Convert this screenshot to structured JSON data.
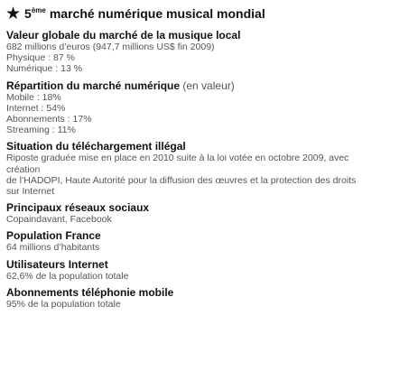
{
  "title": {
    "star": "★",
    "rank_num": "5",
    "rank_suffix": "ème",
    "text": "marché numérique musical mondial"
  },
  "sections": [
    {
      "heading": "Valeur globale du marché de la musique local",
      "lines": [
        "682 millions d’euros (947,7 millions US$ fin 2009)",
        "Physique : 87 %",
        "Numérique : 13 %"
      ]
    },
    {
      "heading": "Répartition du marché numérique",
      "qualifier": "(en valeur)",
      "lines": [
        "Mobile : 18%",
        "Internet : 54%",
        "Abonnements : 17%",
        "Streaming : 11%"
      ]
    },
    {
      "heading": "Situation du téléchargement illégal",
      "lines": [
        "Riposte graduée mise en place en 2010 suite à la loi votée en octobre 2009, avec",
        "création",
        "de l’HADOPI, Haute Autorité pour la diffusion des œuvres et la protection des droits",
        "sur Internet"
      ]
    },
    {
      "heading": "Principaux réseaux sociaux",
      "lines": [
        "Copaindavant, Facebook"
      ]
    },
    {
      "heading": "Population France",
      "lines": [
        "64 millions d’habitants"
      ]
    },
    {
      "heading": "Utilisateurs Internet",
      "lines": [
        "62,6% de la population totale"
      ]
    },
    {
      "heading": "Abonnements téléphonie mobile",
      "lines": [
        "95% de la population totale"
      ]
    }
  ]
}
